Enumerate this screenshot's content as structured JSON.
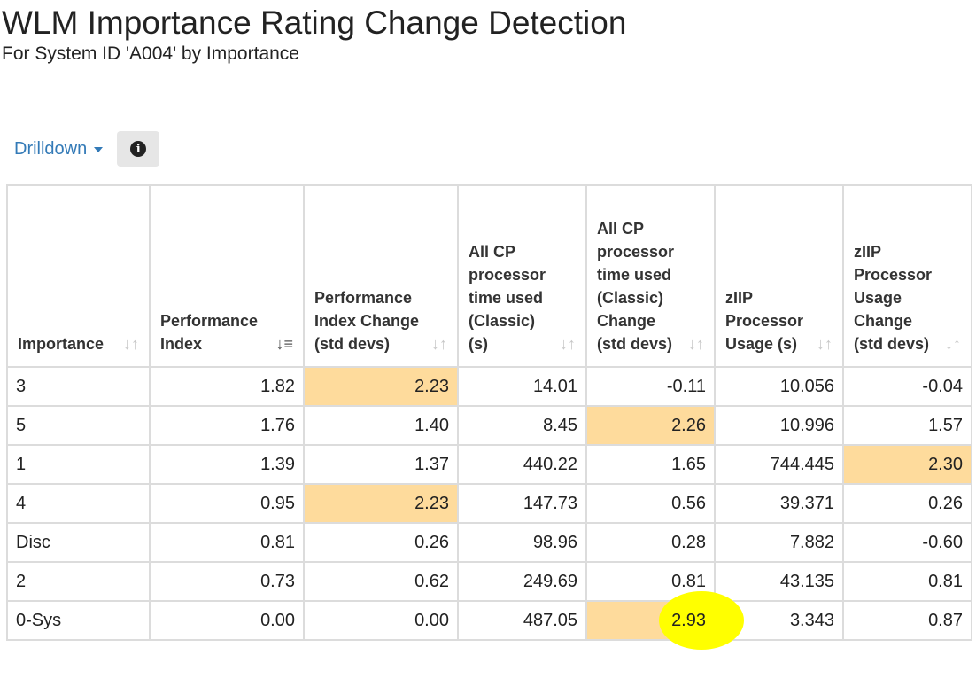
{
  "page": {
    "title": "WLM Importance Rating Change Detection",
    "subtitle": "For System ID 'A004' by Importance"
  },
  "toolbar": {
    "drilldown_label": "Drilldown",
    "info_icon": "info-circle-icon",
    "info_glyph": "i"
  },
  "table": {
    "columns": [
      {
        "label": "Importance",
        "sort": "unsorted"
      },
      {
        "label": "Performance Index",
        "sort": "descending"
      },
      {
        "label": "Performance Index Change (std devs)",
        "sort": "unsorted"
      },
      {
        "label": "All CP processor time used (Classic) (s)",
        "sort": "unsorted"
      },
      {
        "label": "All CP processor time used (Classic) Change (std devs)",
        "sort": "unsorted"
      },
      {
        "label": "zIIP Processor Usage (s)",
        "sort": "unsorted"
      },
      {
        "label": "zIIP Processor Usage Change (std devs)",
        "sort": "unsorted"
      }
    ],
    "rows": [
      {
        "cells": [
          "3",
          "1.82",
          "2.23",
          "14.01",
          "-0.11",
          "10.056",
          "-0.04"
        ],
        "highlight": [
          2
        ]
      },
      {
        "cells": [
          "5",
          "1.76",
          "1.40",
          "8.45",
          "2.26",
          "10.996",
          "1.57"
        ],
        "highlight": [
          4
        ]
      },
      {
        "cells": [
          "1",
          "1.39",
          "1.37",
          "440.22",
          "1.65",
          "744.445",
          "2.30"
        ],
        "highlight": [
          6
        ]
      },
      {
        "cells": [
          "4",
          "0.95",
          "2.23",
          "147.73",
          "0.56",
          "39.371",
          "0.26"
        ],
        "highlight": [
          2
        ]
      },
      {
        "cells": [
          "Disc",
          "0.81",
          "0.26",
          "98.96",
          "0.28",
          "7.882",
          "-0.60"
        ],
        "highlight": []
      },
      {
        "cells": [
          "2",
          "0.73",
          "0.62",
          "249.69",
          "0.81",
          "43.135",
          "0.81"
        ],
        "highlight": []
      },
      {
        "cells": [
          "0-Sys",
          "0.00",
          "0.00",
          "487.05",
          "2.93",
          "3.343",
          "0.87"
        ],
        "highlight": [
          4
        ],
        "yellow_mark": [
          4
        ]
      }
    ]
  },
  "colors": {
    "highlight": "#fedb9c",
    "link": "#337ab7",
    "yellow_mark": "#ffff00"
  }
}
